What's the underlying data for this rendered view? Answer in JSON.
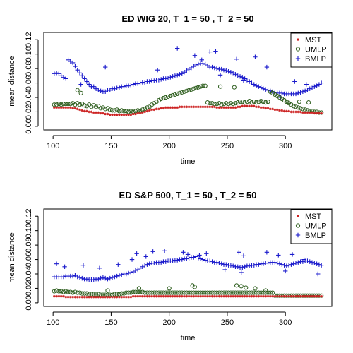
{
  "chart_data": [
    {
      "type": "scatter",
      "title": "ED WIG 20, T_1 = 50 , T_2 = 50",
      "xlabel": "time",
      "ylabel": "mean distance",
      "xlim": [
        92,
        340
      ],
      "ylim": [
        -0.005,
        0.13
      ],
      "xticks": [
        "100",
        "150",
        "200",
        "250",
        "300"
      ],
      "yticks": [
        "0.00",
        "0.02",
        "0.04",
        "0.06",
        "0.08",
        "0.10",
        "0.12"
      ],
      "legend_position": "top-right",
      "legend": [
        "MST",
        "UMLP",
        "BMLP"
      ],
      "x_start": 101,
      "x_step": 2,
      "series": [
        {
          "name": "MST",
          "marker": "star",
          "color": "#cc2020",
          "values": [
            0.026,
            0.026,
            0.026,
            0.026,
            0.026,
            0.026,
            0.026,
            0.026,
            0.025,
            0.025,
            0.024,
            0.023,
            0.022,
            0.021,
            0.021,
            0.02,
            0.02,
            0.019,
            0.019,
            0.019,
            0.018,
            0.018,
            0.017,
            0.017,
            0.016,
            0.016,
            0.016,
            0.016,
            0.016,
            0.016,
            0.016,
            0.016,
            0.016,
            0.016,
            0.017,
            0.017,
            0.018,
            0.018,
            0.019,
            0.02,
            0.021,
            0.022,
            0.023,
            0.023,
            0.024,
            0.024,
            0.025,
            0.025,
            0.026,
            0.026,
            0.026,
            0.026,
            0.026,
            0.026,
            0.027,
            0.027,
            0.027,
            0.027,
            0.027,
            0.027,
            0.027,
            0.027,
            0.027,
            0.027,
            0.027,
            0.027,
            0.027,
            0.027,
            0.027,
            0.027,
            0.026,
            0.026,
            0.026,
            0.026,
            0.026,
            0.026,
            0.026,
            0.026,
            0.026,
            0.027,
            0.027,
            0.028,
            0.028,
            0.028,
            0.028,
            0.028,
            0.028,
            0.027,
            0.027,
            0.026,
            0.026,
            0.025,
            0.025,
            0.024,
            0.024,
            0.023,
            0.023,
            0.022,
            0.022,
            0.021,
            0.021,
            0.021,
            0.02,
            0.02,
            0.02,
            0.02,
            0.02,
            0.019,
            0.019,
            0.019,
            0.019,
            0.019,
            0.018,
            0.018,
            0.018,
            0.018
          ]
        },
        {
          "name": "UMLP",
          "marker": "circle",
          "color": "#2e5e1e",
          "values": [
            0.03,
            0.03,
            0.031,
            0.03,
            0.031,
            0.031,
            0.031,
            0.031,
            0.032,
            0.03,
            0.032,
            0.03,
            0.031,
            0.029,
            0.028,
            0.03,
            0.027,
            0.029,
            0.027,
            0.028,
            0.025,
            0.026,
            0.024,
            0.025,
            0.023,
            0.022,
            0.022,
            0.023,
            0.021,
            0.022,
            0.021,
            0.021,
            0.02,
            0.021,
            0.02,
            0.021,
            0.022,
            0.021,
            0.023,
            0.024,
            0.026,
            0.027,
            0.03,
            0.032,
            0.034,
            0.036,
            0.038,
            0.039,
            0.04,
            0.041,
            0.042,
            0.043,
            0.044,
            0.045,
            0.046,
            0.047,
            0.048,
            0.049,
            0.05,
            0.051,
            0.052,
            0.053,
            0.054,
            0.055,
            0.056,
            0.056,
            0.033,
            0.032,
            0.032,
            0.031,
            0.031,
            0.032,
            0.03,
            0.031,
            0.032,
            0.031,
            0.032,
            0.031,
            0.032,
            0.033,
            0.034,
            0.034,
            0.033,
            0.034,
            0.035,
            0.033,
            0.034,
            0.033,
            0.034,
            0.035,
            0.034,
            0.033,
            0.034,
            0.048,
            0.046,
            0.044,
            0.042,
            0.04,
            0.038,
            0.036,
            0.034,
            0.032,
            0.03,
            0.028,
            0.027,
            0.026,
            0.025,
            0.024,
            0.023,
            0.022,
            0.021,
            0.021,
            0.02,
            0.02,
            0.019,
            0.019
          ],
          "extra": [
            {
              "x": 121,
              "y": 0.05
            },
            {
              "x": 124,
              "y": 0.046
            },
            {
              "x": 244,
              "y": 0.055
            },
            {
              "x": 256,
              "y": 0.054
            },
            {
              "x": 302,
              "y": 0.034
            },
            {
              "x": 312,
              "y": 0.034
            },
            {
              "x": 320,
              "y": 0.033
            }
          ]
        },
        {
          "name": "BMLP",
          "marker": "plus",
          "color": "#1a1acc",
          "values": [
            0.073,
            0.074,
            0.073,
            0.07,
            0.068,
            0.066,
            0.092,
            0.09,
            0.088,
            0.083,
            0.078,
            0.074,
            0.07,
            0.066,
            0.062,
            0.058,
            0.055,
            0.055,
            0.052,
            0.05,
            0.049,
            0.048,
            0.048,
            0.05,
            0.05,
            0.052,
            0.052,
            0.053,
            0.054,
            0.055,
            0.055,
            0.056,
            0.056,
            0.057,
            0.058,
            0.059,
            0.059,
            0.06,
            0.061,
            0.06,
            0.062,
            0.062,
            0.063,
            0.063,
            0.064,
            0.064,
            0.065,
            0.066,
            0.066,
            0.067,
            0.068,
            0.069,
            0.07,
            0.071,
            0.072,
            0.073,
            0.075,
            0.077,
            0.079,
            0.081,
            0.083,
            0.085,
            0.086,
            0.087,
            0.087,
            0.086,
            0.084,
            0.082,
            0.082,
            0.081,
            0.08,
            0.079,
            0.079,
            0.078,
            0.077,
            0.076,
            0.075,
            0.074,
            0.072,
            0.07,
            0.069,
            0.068,
            0.066,
            0.064,
            0.062,
            0.06,
            0.058,
            0.056,
            0.055,
            0.054,
            0.052,
            0.051,
            0.05,
            0.049,
            0.048,
            0.047,
            0.046,
            0.046,
            0.046,
            0.045,
            0.045,
            0.045,
            0.045,
            0.045,
            0.045,
            0.046,
            0.047,
            0.048,
            0.049,
            0.05,
            0.052,
            0.053,
            0.055,
            0.056,
            0.058,
            0.06
          ],
          "extra": [
            {
              "x": 124,
              "y": 0.058
            },
            {
              "x": 145,
              "y": 0.082
            },
            {
              "x": 190,
              "y": 0.078
            },
            {
              "x": 207,
              "y": 0.108
            },
            {
              "x": 222,
              "y": 0.098
            },
            {
              "x": 228,
              "y": 0.092
            },
            {
              "x": 235,
              "y": 0.103
            },
            {
              "x": 240,
              "y": 0.104
            },
            {
              "x": 244,
              "y": 0.071
            },
            {
              "x": 258,
              "y": 0.093
            },
            {
              "x": 264,
              "y": 0.063
            },
            {
              "x": 274,
              "y": 0.096
            },
            {
              "x": 284,
              "y": 0.082
            },
            {
              "x": 296,
              "y": 0.04
            },
            {
              "x": 308,
              "y": 0.062
            },
            {
              "x": 318,
              "y": 0.058
            }
          ]
        }
      ]
    },
    {
      "type": "scatter",
      "title": "ED S&P 500, T_1 = 50 , T_2 = 50",
      "xlabel": "time",
      "ylabel": "mean distance",
      "xlim": [
        92,
        340
      ],
      "ylim": [
        -0.005,
        0.13
      ],
      "xticks": [
        "100",
        "150",
        "200",
        "250",
        "300"
      ],
      "yticks": [
        "0.00",
        "0.02",
        "0.04",
        "0.06",
        "0.08",
        "0.10",
        "0.12"
      ],
      "legend_position": "top-right",
      "legend": [
        "MST",
        "UMLP",
        "BMLP"
      ],
      "x_start": 101,
      "x_step": 2,
      "series": [
        {
          "name": "MST",
          "marker": "star",
          "color": "#cc2020",
          "values": [
            0.009,
            0.009,
            0.009,
            0.009,
            0.009,
            0.008,
            0.008,
            0.008,
            0.008,
            0.008,
            0.008,
            0.008,
            0.008,
            0.008,
            0.008,
            0.008,
            0.008,
            0.008,
            0.008,
            0.008,
            0.008,
            0.008,
            0.008,
            0.008,
            0.008,
            0.008,
            0.008,
            0.008,
            0.008,
            0.008,
            0.008,
            0.008,
            0.008,
            0.008,
            0.009,
            0.009,
            0.009,
            0.009,
            0.009,
            0.009,
            0.009,
            0.009,
            0.009,
            0.009,
            0.009,
            0.009,
            0.009,
            0.009,
            0.009,
            0.009,
            0.009,
            0.009,
            0.009,
            0.009,
            0.009,
            0.009,
            0.009,
            0.009,
            0.009,
            0.009,
            0.009,
            0.009,
            0.009,
            0.009,
            0.009,
            0.009,
            0.009,
            0.009,
            0.009,
            0.009,
            0.009,
            0.009,
            0.009,
            0.009,
            0.009,
            0.009,
            0.009,
            0.009,
            0.009,
            0.009,
            0.009,
            0.009,
            0.009,
            0.009,
            0.009,
            0.009,
            0.009,
            0.009,
            0.009,
            0.009,
            0.009,
            0.009,
            0.009,
            0.009,
            0.009,
            0.009,
            0.009,
            0.009,
            0.009,
            0.009,
            0.009,
            0.009,
            0.009,
            0.009,
            0.009,
            0.009,
            0.009,
            0.009,
            0.009,
            0.009,
            0.009,
            0.009,
            0.009,
            0.009,
            0.009,
            0.009
          ]
        },
        {
          "name": "UMLP",
          "marker": "circle",
          "color": "#2e5e1e",
          "values": [
            0.016,
            0.017,
            0.016,
            0.016,
            0.015,
            0.016,
            0.015,
            0.015,
            0.014,
            0.015,
            0.014,
            0.014,
            0.013,
            0.013,
            0.013,
            0.012,
            0.012,
            0.012,
            0.012,
            0.012,
            0.011,
            0.011,
            0.011,
            0.011,
            0.011,
            0.011,
            0.012,
            0.012,
            0.012,
            0.013,
            0.013,
            0.014,
            0.014,
            0.014,
            0.015,
            0.015,
            0.015,
            0.015,
            0.015,
            0.014,
            0.014,
            0.014,
            0.014,
            0.014,
            0.014,
            0.014,
            0.014,
            0.014,
            0.014,
            0.014,
            0.014,
            0.014,
            0.014,
            0.014,
            0.014,
            0.014,
            0.014,
            0.014,
            0.014,
            0.014,
            0.014,
            0.014,
            0.014,
            0.014,
            0.014,
            0.014,
            0.014,
            0.014,
            0.014,
            0.014,
            0.014,
            0.014,
            0.014,
            0.014,
            0.014,
            0.014,
            0.014,
            0.014,
            0.014,
            0.014,
            0.014,
            0.014,
            0.014,
            0.014,
            0.014,
            0.014,
            0.014,
            0.014,
            0.014,
            0.014,
            0.014,
            0.014,
            0.014,
            0.014,
            0.014,
            0.01,
            0.01,
            0.01,
            0.01,
            0.01,
            0.01,
            0.01,
            0.01,
            0.01,
            0.01,
            0.01,
            0.01,
            0.01,
            0.01,
            0.01,
            0.01,
            0.01,
            0.01,
            0.01,
            0.01,
            0.01
          ],
          "extra": [
            {
              "x": 147,
              "y": 0.017
            },
            {
              "x": 174,
              "y": 0.02
            },
            {
              "x": 200,
              "y": 0.02
            },
            {
              "x": 220,
              "y": 0.024
            },
            {
              "x": 222,
              "y": 0.022
            },
            {
              "x": 258,
              "y": 0.024
            },
            {
              "x": 262,
              "y": 0.023
            },
            {
              "x": 266,
              "y": 0.021
            },
            {
              "x": 274,
              "y": 0.02
            },
            {
              "x": 283,
              "y": 0.017
            }
          ]
        },
        {
          "name": "BMLP",
          "marker": "plus",
          "color": "#1a1acc",
          "values": [
            0.036,
            0.036,
            0.036,
            0.036,
            0.036,
            0.037,
            0.037,
            0.037,
            0.037,
            0.038,
            0.036,
            0.035,
            0.034,
            0.033,
            0.033,
            0.032,
            0.032,
            0.032,
            0.033,
            0.033,
            0.034,
            0.035,
            0.034,
            0.033,
            0.034,
            0.035,
            0.036,
            0.037,
            0.038,
            0.039,
            0.04,
            0.04,
            0.041,
            0.042,
            0.043,
            0.045,
            0.046,
            0.048,
            0.05,
            0.052,
            0.053,
            0.054,
            0.055,
            0.055,
            0.056,
            0.056,
            0.056,
            0.057,
            0.057,
            0.058,
            0.058,
            0.058,
            0.059,
            0.059,
            0.06,
            0.06,
            0.061,
            0.061,
            0.062,
            0.063,
            0.063,
            0.064,
            0.062,
            0.061,
            0.06,
            0.059,
            0.058,
            0.058,
            0.057,
            0.056,
            0.056,
            0.055,
            0.054,
            0.053,
            0.053,
            0.052,
            0.052,
            0.051,
            0.05,
            0.05,
            0.049,
            0.049,
            0.05,
            0.051,
            0.051,
            0.052,
            0.052,
            0.053,
            0.053,
            0.054,
            0.054,
            0.055,
            0.055,
            0.056,
            0.056,
            0.056,
            0.055,
            0.054,
            0.053,
            0.052,
            0.051,
            0.052,
            0.053,
            0.054,
            0.055,
            0.056,
            0.057,
            0.057,
            0.058,
            0.058,
            0.057,
            0.056,
            0.055,
            0.054,
            0.053,
            0.052
          ],
          "extra": [
            {
              "x": 103,
              "y": 0.054
            },
            {
              "x": 110,
              "y": 0.05
            },
            {
              "x": 126,
              "y": 0.052
            },
            {
              "x": 140,
              "y": 0.048
            },
            {
              "x": 156,
              "y": 0.053
            },
            {
              "x": 168,
              "y": 0.06
            },
            {
              "x": 172,
              "y": 0.068
            },
            {
              "x": 180,
              "y": 0.064
            },
            {
              "x": 186,
              "y": 0.071
            },
            {
              "x": 196,
              "y": 0.072
            },
            {
              "x": 212,
              "y": 0.07
            },
            {
              "x": 216,
              "y": 0.067
            },
            {
              "x": 226,
              "y": 0.066
            },
            {
              "x": 232,
              "y": 0.068
            },
            {
              "x": 260,
              "y": 0.07
            },
            {
              "x": 264,
              "y": 0.065
            },
            {
              "x": 284,
              "y": 0.07
            },
            {
              "x": 294,
              "y": 0.066
            },
            {
              "x": 306,
              "y": 0.067
            },
            {
              "x": 316,
              "y": 0.06
            },
            {
              "x": 262,
              "y": 0.042
            },
            {
              "x": 248,
              "y": 0.046
            },
            {
              "x": 300,
              "y": 0.044
            },
            {
              "x": 328,
              "y": 0.04
            }
          ]
        }
      ]
    }
  ]
}
